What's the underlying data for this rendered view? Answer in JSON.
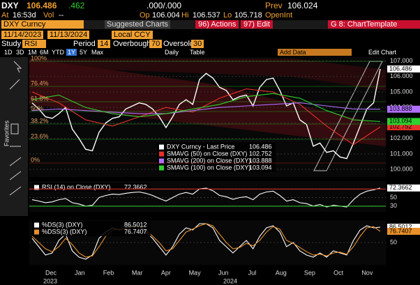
{
  "header": {
    "ticker": "DXY",
    "price": "106.486",
    "change": ".462",
    "bidask": ".000/.000",
    "prev_label": "Prev",
    "prev": "106.024",
    "at_label": "At",
    "time": "16:53d",
    "vol_label": "Vol",
    "vol": "--",
    "op_label": "Op",
    "op": "106.004",
    "hi_label": "Hi",
    "hi": "106.537",
    "lo_label": "Lo",
    "lo": "105.718",
    "openint_label": "OpenInt"
  },
  "command_bar": {
    "security": "DXY Curncy",
    "suggested": "Suggested Charts",
    "actions": "96) Actions",
    "edit": "97) Edit",
    "template": "G 8: ChartTemplate"
  },
  "settings": {
    "start": "11/14/2023",
    "end": "11/13/2024",
    "currency": "Local CCY",
    "study_label": "Study",
    "study": "RSI",
    "period_label": "Period",
    "period": "14",
    "overbought_label": "Overbought",
    "overbought": "70",
    "oversold_label": "Oversold",
    "oversold": "30"
  },
  "toolbar": {
    "periods": [
      "1D",
      "3D",
      "1M",
      "6M",
      "YTD",
      "1Y",
      "5Y",
      "Max"
    ],
    "selected_period": "1Y",
    "frequency": "Daily",
    "table": "Table",
    "add_data": "Add Data",
    "edit_chart": "Edit Chart",
    "favorites": "Favorites"
  },
  "x_axis": {
    "months": [
      "Dec",
      "Jan",
      "Feb",
      "Mar",
      "Apr",
      "May",
      "Jun",
      "Jul",
      "Aug",
      "Sep",
      "Oct",
      "Nov"
    ],
    "years": [
      "2023",
      "2024"
    ]
  },
  "chart_data": [
    {
      "type": "line",
      "ylim": [
        99.6,
        107.25
      ],
      "yticks": [
        {
          "value": 100,
          "label": "100.000"
        },
        {
          "value": 101,
          "label": "101.000"
        },
        {
          "value": 102,
          "label": "102.000"
        },
        {
          "value": 103,
          "label": "103.000"
        },
        {
          "value": 104,
          "label": "104.000"
        },
        {
          "value": 105,
          "label": "105.000"
        },
        {
          "value": 106,
          "label": "106.000"
        },
        {
          "value": 107,
          "label": "107.000"
        }
      ],
      "annotations": [
        "100%",
        "76.4%",
        "61.8%",
        "50%",
        "38.2%",
        "23.6%",
        "0%"
      ],
      "series": [
        {
          "name": "DXY Curncy - Last Price",
          "color": "#ffffff",
          "values": [
            104.3,
            103.9,
            103.4,
            103.3,
            103.6,
            104.0,
            102.6,
            102.0,
            101.3,
            101.2,
            102.4,
            103.0,
            103.3,
            103.4,
            103.9,
            104.1,
            104.3,
            104.2,
            103.9,
            103.4,
            102.7,
            103.4,
            104.2,
            104.5,
            104.2,
            105.8,
            106.2,
            105.9,
            105.3,
            105.1,
            104.5,
            104.7,
            104.8,
            104.1,
            105.3,
            105.8,
            105.9,
            105.1,
            104.1,
            104.3,
            103.2,
            102.9,
            101.5,
            101.7,
            101.1,
            101.2,
            100.8,
            100.7,
            101.7,
            102.8,
            103.9,
            104.3,
            106.486
          ]
        },
        {
          "name": "SMAVG (50)  on Close (DXY)",
          "color": "#e8302a",
          "values": [
            105.0,
            104.3,
            103.2,
            102.8,
            103.4,
            104.0,
            103.7,
            104.6,
            105.2,
            105.0,
            104.2,
            102.8,
            101.6,
            102.752
          ]
        },
        {
          "name": "SMAVG (200)  on Close (DXY)",
          "color": "#b070ff",
          "values": [
            103.8,
            103.9,
            103.8,
            103.7,
            103.6,
            103.6,
            103.8,
            104.0,
            104.1,
            104.2,
            104.3,
            104.1,
            103.9,
            103.888
          ]
        },
        {
          "name": "SMAVG (100)  on Close (DXY)",
          "color": "#2fd02f",
          "values": [
            104.5,
            104.8,
            104.0,
            103.6,
            103.4,
            103.6,
            103.9,
            104.2,
            104.7,
            104.9,
            104.6,
            103.8,
            103.2,
            103.094
          ]
        }
      ]
    },
    {
      "type": "line",
      "ylim": [
        20,
        85
      ],
      "yticks": [
        30,
        50,
        70
      ],
      "series": [
        {
          "name": "RSI (14)  on Close (DXY)",
          "color": "#ffffff",
          "values": [
            45,
            42,
            38,
            40,
            45,
            48,
            38,
            35,
            30,
            32,
            50,
            55,
            58,
            57,
            60,
            62,
            63,
            60,
            55,
            48,
            42,
            50,
            58,
            62,
            58,
            70,
            72,
            66,
            55,
            52,
            46,
            50,
            52,
            45,
            58,
            63,
            65,
            55,
            42,
            45,
            38,
            36,
            30,
            34,
            28,
            32,
            30,
            28,
            45,
            58,
            65,
            68,
            72.3662
          ]
        }
      ]
    },
    {
      "type": "line",
      "ylim": [
        0,
        100
      ],
      "yticks": [
        50
      ],
      "series": [
        {
          "name": "%DS(3) (DXY)",
          "color": "#ffffff",
          "values": [
            60,
            40,
            20,
            25,
            55,
            70,
            30,
            15,
            10,
            20,
            60,
            75,
            85,
            80,
            85,
            90,
            88,
            75,
            60,
            40,
            20,
            40,
            70,
            85,
            80,
            95,
            95,
            85,
            55,
            40,
            25,
            40,
            55,
            35,
            65,
            85,
            90,
            75,
            40,
            50,
            30,
            20,
            15,
            25,
            15,
            30,
            25,
            20,
            55,
            80,
            90,
            85,
            86.5012
          ]
        },
        {
          "name": "%DSS(3) (DXY)",
          "color": "#e8902a",
          "values": [
            65,
            50,
            35,
            28,
            40,
            60,
            45,
            25,
            15,
            18,
            40,
            65,
            80,
            82,
            83,
            88,
            89,
            80,
            65,
            50,
            30,
            35,
            55,
            75,
            82,
            90,
            95,
            90,
            70,
            50,
            35,
            38,
            48,
            42,
            55,
            75,
            88,
            82,
            55,
            48,
            38,
            28,
            20,
            22,
            18,
            25,
            27,
            22,
            40,
            65,
            85,
            88,
            76.7407
          ]
        }
      ]
    }
  ]
}
